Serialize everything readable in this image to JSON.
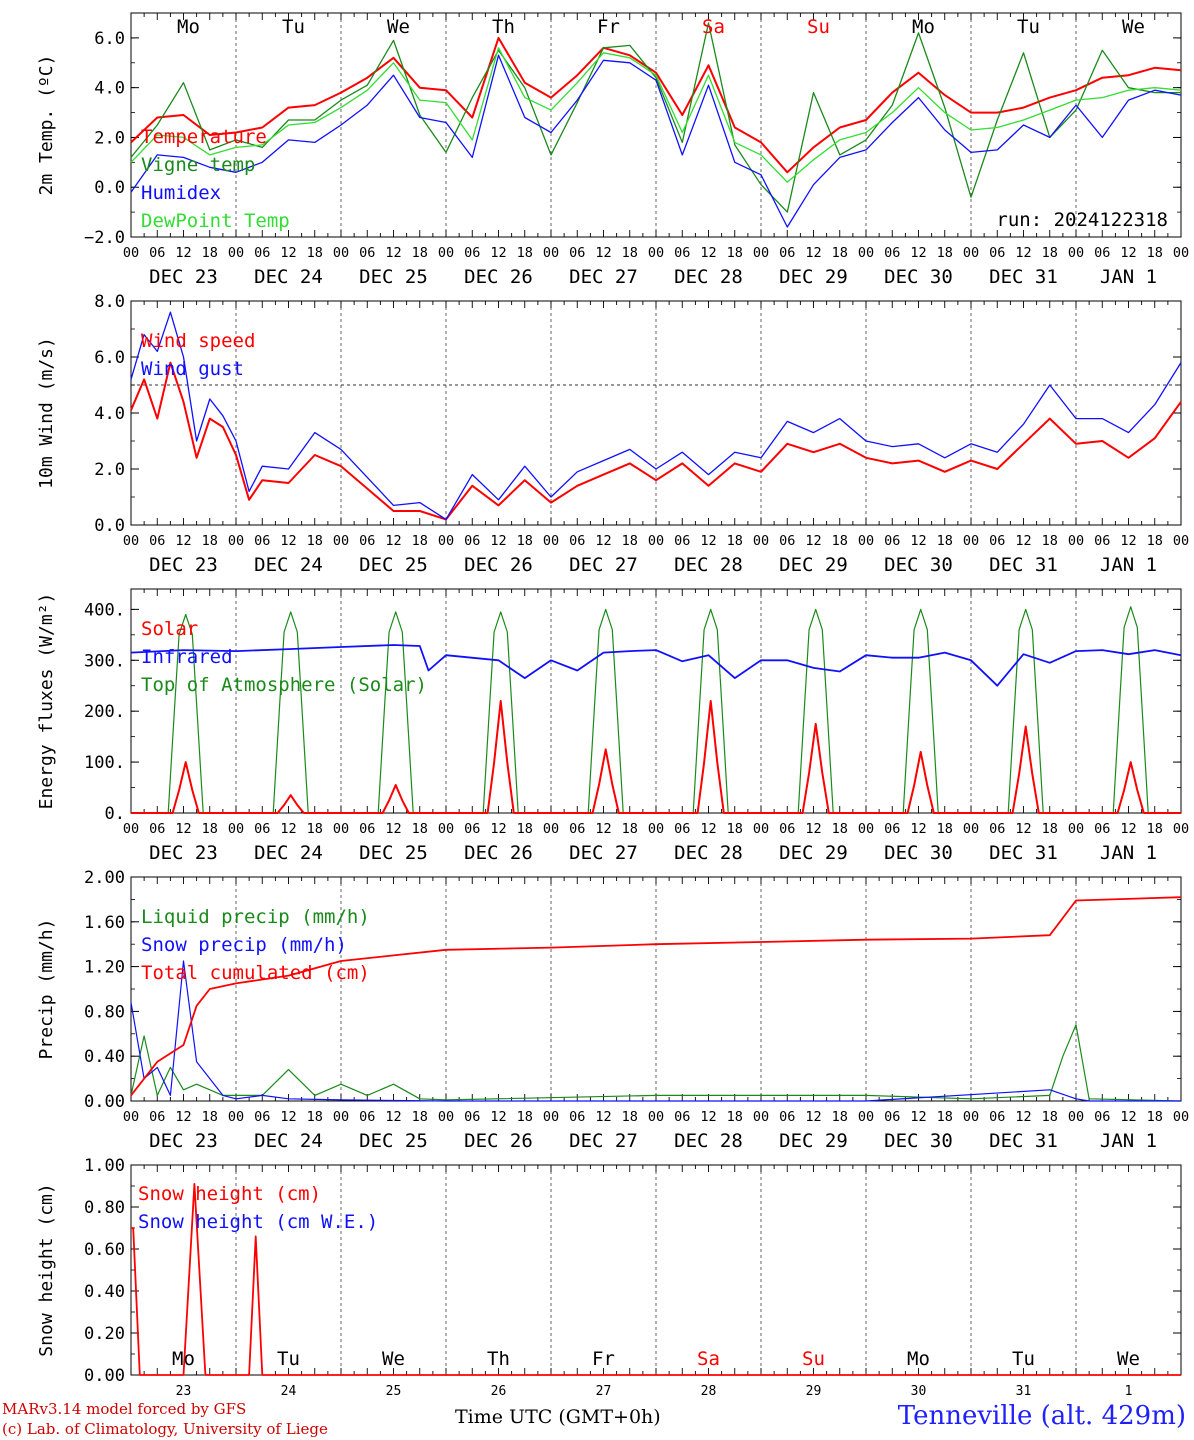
{
  "header": {
    "run_label": "run: 2024122318",
    "station": "Tenneville (alt. 429m)",
    "x_title": "Time UTC (GMT+0h)",
    "credit_line1": "MARv3.14 model forced by GFS",
    "credit_line2": "(c) Lab. of Climatology, University of Liege"
  },
  "colors": {
    "red": "#ff0000",
    "dark_green": "#1a8a1a",
    "blue": "#1010ff",
    "light_green": "#33dd33",
    "weekend": "#ff0000",
    "text": "#000000"
  },
  "chart_data": {
    "shared_time_axis": {
      "start": "2024-12-23T00:00Z",
      "end": "2025-01-02T00:00Z",
      "hour_tick_labels": [
        "00",
        "06",
        "12",
        "18"
      ],
      "date_labels": [
        "DEC 23",
        "DEC 24",
        "DEC 25",
        "DEC 26",
        "DEC 27",
        "DEC 28",
        "DEC 29",
        "DEC 30",
        "DEC 31",
        "JAN  1"
      ],
      "weekday_labels": [
        "Mo",
        "Tu",
        "We",
        "Th",
        "Fr",
        "Sa",
        "Su",
        "Mo",
        "Tu",
        "We"
      ],
      "weekend_days": [
        "Sa",
        "Su"
      ],
      "bottom_day_numbers": [
        "23",
        "24",
        "25",
        "26",
        "27",
        "28",
        "29",
        "30",
        "31",
        "1"
      ]
    },
    "panels": [
      {
        "type": "line",
        "ylabel": "2m Temp. (ºC)",
        "ylim": [
          -2,
          7
        ],
        "yticks": [
          -2,
          0,
          2,
          4,
          6
        ],
        "ytick_labels": [
          "−2.0",
          "0.0",
          "2.0",
          "4.0",
          "6.0"
        ],
        "hours": [
          0,
          6,
          12,
          18,
          24,
          30,
          36,
          42,
          48,
          54,
          60,
          66,
          72,
          78,
          84,
          90,
          96,
          102,
          108,
          114,
          120,
          126,
          132,
          138,
          144,
          150,
          156,
          162,
          168,
          174,
          180,
          186,
          192,
          198,
          204,
          210,
          216,
          222,
          228,
          234,
          240
        ],
        "series": [
          {
            "name": "Temperature",
            "color": "red",
            "values": [
              1.8,
              2.8,
              2.9,
              2.1,
              2.2,
              2.4,
              3.2,
              3.3,
              3.8,
              4.4,
              5.2,
              4.0,
              3.9,
              2.8,
              6.0,
              4.2,
              3.6,
              4.5,
              5.6,
              5.3,
              4.6,
              2.9,
              4.9,
              2.4,
              1.8,
              0.6,
              1.6,
              2.4,
              2.7,
              3.8,
              4.6,
              3.7,
              3.0,
              3.0,
              3.2,
              3.6,
              3.9,
              4.4,
              4.5,
              4.8,
              4.7
            ]
          },
          {
            "name": "Vigne temp",
            "color": "dark_green",
            "values": [
              1.2,
              2.5,
              4.2,
              1.5,
              1.9,
              1.6,
              2.7,
              2.7,
              3.5,
              4.1,
              5.9,
              2.9,
              1.4,
              3.6,
              5.5,
              4.0,
              1.3,
              3.4,
              5.6,
              5.7,
              4.4,
              1.8,
              6.6,
              1.7,
              0.1,
              -1.0,
              3.8,
              1.3,
              1.9,
              3.3,
              6.2,
              3.2,
              -0.4,
              2.7,
              5.4,
              2.0,
              3.1,
              5.5,
              4.0,
              3.8,
              3.8
            ]
          },
          {
            "name": "Humidex",
            "color": "blue",
            "values": [
              -0.2,
              1.3,
              1.2,
              0.8,
              0.6,
              1.0,
              1.9,
              1.8,
              2.5,
              3.3,
              4.5,
              2.8,
              2.6,
              1.2,
              5.3,
              2.8,
              2.2,
              3.5,
              5.1,
              5.0,
              4.3,
              1.3,
              4.1,
              1.0,
              0.5,
              -1.6,
              0.1,
              1.2,
              1.5,
              2.6,
              3.6,
              2.3,
              1.4,
              1.5,
              2.5,
              2.0,
              3.3,
              2.0,
              3.5,
              3.9,
              3.7
            ]
          },
          {
            "name": "DewPoint Temp",
            "color": "light_green",
            "values": [
              1.0,
              2.1,
              2.0,
              1.3,
              1.6,
              1.7,
              2.5,
              2.6,
              3.2,
              3.9,
              5.0,
              3.5,
              3.4,
              1.9,
              5.6,
              3.6,
              3.1,
              4.2,
              5.4,
              5.2,
              4.5,
              2.2,
              4.5,
              1.8,
              1.3,
              0.2,
              1.1,
              1.9,
              2.2,
              3.0,
              4.0,
              3.0,
              2.3,
              2.4,
              2.7,
              3.1,
              3.5,
              3.6,
              3.9,
              4.0,
              3.9
            ]
          }
        ],
        "legend": [
          "Temperature",
          "Vigne temp",
          "Humidex",
          "DewPoint Temp"
        ]
      },
      {
        "type": "line",
        "ylabel": "10m Wind (m/s)",
        "ylim": [
          0,
          8
        ],
        "yticks": [
          0,
          2,
          4,
          6,
          8
        ],
        "ytick_labels": [
          "0.0",
          "2.0",
          "4.0",
          "6.0",
          "8.0"
        ],
        "reference_line": 5,
        "hours": [
          0,
          3,
          6,
          9,
          12,
          15,
          18,
          21,
          24,
          27,
          30,
          36,
          42,
          48,
          54,
          60,
          66,
          72,
          78,
          84,
          90,
          96,
          102,
          108,
          114,
          120,
          126,
          132,
          138,
          144,
          150,
          156,
          162,
          168,
          174,
          180,
          186,
          192,
          198,
          204,
          210,
          216,
          222,
          228,
          234,
          240
        ],
        "series": [
          {
            "name": "Wind speed",
            "color": "red",
            "values": [
              4.1,
              5.2,
              3.8,
              5.8,
              4.4,
              2.4,
              3.8,
              3.5,
              2.5,
              0.9,
              1.6,
              1.5,
              2.5,
              2.1,
              1.3,
              0.5,
              0.5,
              0.2,
              1.4,
              0.7,
              1.6,
              0.8,
              1.4,
              1.8,
              2.2,
              1.6,
              2.2,
              1.4,
              2.2,
              1.9,
              2.9,
              2.6,
              2.9,
              2.4,
              2.2,
              2.3,
              1.9,
              2.3,
              2.0,
              2.9,
              3.8,
              2.9,
              3.0,
              2.4,
              3.1,
              4.4
            ]
          },
          {
            "name": "Wind gust",
            "color": "blue",
            "values": [
              5.2,
              6.8,
              6.2,
              7.6,
              6.0,
              3.0,
              4.5,
              3.9,
              3.0,
              1.2,
              2.1,
              2.0,
              3.3,
              2.7,
              1.7,
              0.7,
              0.8,
              0.2,
              1.8,
              0.9,
              2.1,
              1.0,
              1.9,
              2.3,
              2.7,
              2.0,
              2.6,
              1.8,
              2.6,
              2.4,
              3.7,
              3.3,
              3.8,
              3.0,
              2.8,
              2.9,
              2.4,
              2.9,
              2.6,
              3.6,
              5.0,
              3.8,
              3.8,
              3.3,
              4.3,
              5.8
            ]
          }
        ],
        "legend": [
          "Wind speed",
          "Wind gust"
        ]
      },
      {
        "type": "line",
        "ylabel": "Energy fluxes (W/m²)",
        "ylim": [
          0,
          440
        ],
        "yticks": [
          0,
          100,
          200,
          300,
          400
        ],
        "ytick_labels": [
          "0.",
          "100.",
          "200.",
          "300.",
          "400."
        ],
        "solar_peaks": [
          100,
          35,
          55,
          220,
          125,
          220,
          175,
          120,
          170,
          100
        ],
        "toa_peaks": [
          390,
          395,
          395,
          395,
          400,
          400,
          400,
          400,
          400,
          405
        ],
        "infrared_hours": [
          0,
          12,
          24,
          36,
          48,
          60,
          66,
          68,
          72,
          84,
          90,
          96,
          102,
          108,
          114,
          120,
          126,
          132,
          138,
          144,
          150,
          156,
          162,
          168,
          174,
          180,
          186,
          192,
          198,
          204,
          210,
          216,
          222,
          228,
          234,
          240
        ],
        "infrared_values": [
          315,
          320,
          318,
          322,
          326,
          330,
          328,
          280,
          310,
          300,
          265,
          300,
          280,
          315,
          318,
          320,
          298,
          310,
          265,
          300,
          300,
          285,
          278,
          310,
          305,
          305,
          315,
          300,
          250,
          312,
          295,
          318,
          320,
          312,
          320,
          310
        ],
        "series": [
          {
            "name": "Solar",
            "color": "red"
          },
          {
            "name": "Infrared",
            "color": "blue"
          },
          {
            "name": "Top of Atmosphere (Solar)",
            "color": "dark_green"
          }
        ],
        "legend": [
          "Solar",
          "Infrared",
          "Top of Atmosphere (Solar)"
        ]
      },
      {
        "type": "line",
        "ylabel": "Precip (mm/h)",
        "ylim": [
          0,
          2
        ],
        "yticks": [
          0,
          0.4,
          0.8,
          1.2,
          1.6,
          2.0
        ],
        "ytick_labels": [
          "0.00",
          "0.40",
          "0.80",
          "1.20",
          "1.60",
          "2.00"
        ],
        "series": [
          {
            "name": "Liquid precip (mm/h)",
            "color": "dark_green",
            "hours": [
              0,
              3,
              6,
              9,
              12,
              15,
              18,
              21,
              24,
              30,
              36,
              42,
              48,
              54,
              60,
              66,
              72,
              120,
              168,
              192,
              210,
              213,
              216,
              219,
              240
            ],
            "values": [
              0.05,
              0.58,
              0.05,
              0.3,
              0.1,
              0.15,
              0.1,
              0.05,
              0.05,
              0.05,
              0.28,
              0.05,
              0.15,
              0.05,
              0.15,
              0.02,
              0.01,
              0.05,
              0.05,
              0.02,
              0.05,
              0.4,
              0.68,
              0.02,
              0.0
            ]
          },
          {
            "name": "Snow precip (mm/h)",
            "color": "blue",
            "hours": [
              0,
              3,
              6,
              9,
              12,
              15,
              18,
              21,
              24,
              30,
              36,
              48,
              72,
              120,
              168,
              210,
              216,
              219,
              240
            ],
            "values": [
              0.88,
              0.2,
              0.3,
              0.05,
              1.25,
              0.35,
              0.2,
              0.05,
              0.02,
              0.05,
              0.02,
              0.01,
              0.0,
              0.0,
              0.0,
              0.1,
              0.02,
              0.0,
              0.0
            ]
          },
          {
            "name": "Total cumulated (cm)",
            "color": "red",
            "hours": [
              0,
              6,
              12,
              15,
              18,
              24,
              36,
              48,
              60,
              72,
              96,
              120,
              144,
              168,
              192,
              210,
              216,
              240
            ],
            "values": [
              0.05,
              0.35,
              0.5,
              0.85,
              1.0,
              1.05,
              1.12,
              1.25,
              1.3,
              1.35,
              1.37,
              1.4,
              1.42,
              1.44,
              1.45,
              1.48,
              1.79,
              1.82
            ]
          }
        ],
        "legend": [
          "Liquid precip (mm/h)",
          "Snow precip (mm/h)",
          "Total cumulated (cm)"
        ]
      },
      {
        "type": "line",
        "ylabel": "Snow height (cm)",
        "ylim": [
          0,
          1
        ],
        "yticks": [
          0,
          0.2,
          0.4,
          0.6,
          0.8,
          1.0
        ],
        "ytick_labels": [
          "0.00",
          "0.20",
          "0.40",
          "0.60",
          "0.80",
          "1.00"
        ],
        "series": [
          {
            "name": "Snow height (cm)",
            "color": "red",
            "hours": [
              0,
              0.5,
              2,
              12,
              14.5,
              17,
              27,
              28.5,
              30,
              240
            ],
            "values": [
              0.7,
              0.7,
              0.0,
              0.0,
              0.91,
              0.0,
              0.0,
              0.66,
              0.0,
              0.0
            ]
          },
          {
            "name": "Snow height (cm W.E.)",
            "color": "blue"
          }
        ],
        "legend": [
          "Snow height (cm)",
          "Snow height (cm W.E.)"
        ]
      }
    ]
  }
}
